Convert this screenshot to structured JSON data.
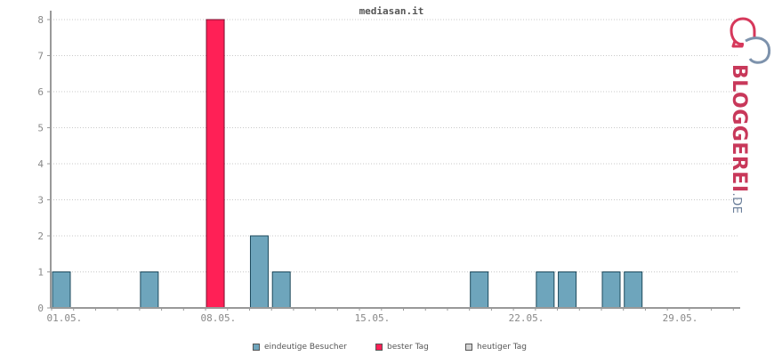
{
  "chart_data": {
    "type": "bar",
    "title": "mediasan.it",
    "xlabel": "",
    "ylabel": "",
    "ylim": [
      0,
      8
    ],
    "yticks": [
      0,
      1,
      2,
      3,
      4,
      5,
      6,
      7,
      8
    ],
    "grid": true,
    "categories": [
      "01.05.",
      "02.05.",
      "03.05.",
      "04.05.",
      "05.05.",
      "06.05.",
      "07.05.",
      "08.05.",
      "09.05.",
      "10.05.",
      "11.05.",
      "12.05.",
      "13.05.",
      "14.05.",
      "15.05.",
      "16.05.",
      "17.05.",
      "18.05.",
      "19.05.",
      "20.05.",
      "21.05.",
      "22.05.",
      "23.05.",
      "24.05.",
      "25.05.",
      "26.05.",
      "27.05.",
      "28.05.",
      "29.05.",
      "30.05.",
      "31.05."
    ],
    "xtick_labels": [
      "01.05.",
      "08.05.",
      "15.05.",
      "22.05.",
      "29.05."
    ],
    "values": [
      1,
      0,
      0,
      0,
      1,
      0,
      0,
      8,
      0,
      2,
      1,
      0,
      0,
      0,
      0,
      0,
      0,
      0,
      0,
      1,
      0,
      0,
      1,
      1,
      0,
      1,
      1,
      0,
      0,
      0,
      0
    ],
    "highlight_index": 7,
    "colors": {
      "unique_visitors": "#6ea5bc",
      "best_day": "#ff2056",
      "today": "#d3d3d3",
      "bar_border": "#1e4a5c",
      "grid": "#c8c8c8",
      "axis": "#999999"
    },
    "legend": {
      "placement": "bottom-center",
      "items": [
        {
          "label": "eindeutige Besucher",
          "color": "#6ea5bc"
        },
        {
          "label": "bester Tag",
          "color": "#ff2056"
        },
        {
          "label": "heutiger Tag",
          "color": "#d3d3d3"
        }
      ]
    }
  },
  "logo": {
    "text": "BLOGGEREI.DE",
    "colors": [
      "#c8385a",
      "#6b7f9a"
    ]
  }
}
